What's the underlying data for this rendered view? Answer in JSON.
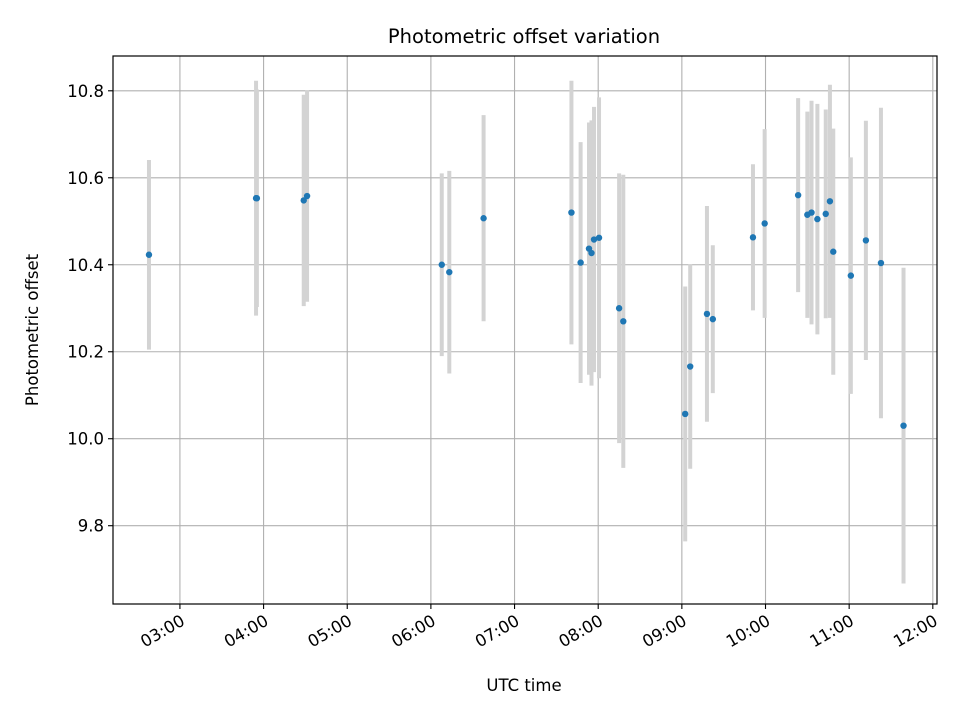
{
  "chart_data": {
    "type": "scatter",
    "title": "Photometric offset variation",
    "xlabel": "UTC time",
    "ylabel": "Photometric offset",
    "x_unit": "hours UTC",
    "xlim": [
      2.2,
      12.05
    ],
    "ylim": [
      9.62,
      10.88
    ],
    "xticks": [
      {
        "value": 3,
        "label": "03:00"
      },
      {
        "value": 4,
        "label": "04:00"
      },
      {
        "value": 5,
        "label": "05:00"
      },
      {
        "value": 6,
        "label": "06:00"
      },
      {
        "value": 7,
        "label": "07:00"
      },
      {
        "value": 8,
        "label": "08:00"
      },
      {
        "value": 9,
        "label": "09:00"
      },
      {
        "value": 10,
        "label": "10:00"
      },
      {
        "value": 11,
        "label": "11:00"
      },
      {
        "value": 12,
        "label": "12:00"
      }
    ],
    "yticks": [
      {
        "value": 9.8,
        "label": "9.8"
      },
      {
        "value": 10.0,
        "label": "10.0"
      },
      {
        "value": 10.2,
        "label": "10.2"
      },
      {
        "value": 10.4,
        "label": "10.4"
      },
      {
        "value": 10.6,
        "label": "10.6"
      },
      {
        "value": 10.8,
        "label": "10.8"
      }
    ],
    "grid": true,
    "point_color": "#1f77b4",
    "errorbar_color": "#d3d3d3",
    "points": [
      {
        "x": 2.63,
        "y": 10.423,
        "err": 0.218
      },
      {
        "x": 3.91,
        "y": 10.553,
        "err": 0.27
      },
      {
        "x": 3.92,
        "y": 10.553,
        "err": 0.25
      },
      {
        "x": 4.48,
        "y": 10.548,
        "err": 0.243
      },
      {
        "x": 4.52,
        "y": 10.558,
        "err": 0.243
      },
      {
        "x": 6.13,
        "y": 10.4,
        "err": 0.21
      },
      {
        "x": 6.22,
        "y": 10.383,
        "err": 0.233
      },
      {
        "x": 6.63,
        "y": 10.507,
        "err": 0.237
      },
      {
        "x": 7.68,
        "y": 10.52,
        "err": 0.303
      },
      {
        "x": 7.79,
        "y": 10.405,
        "err": 0.277
      },
      {
        "x": 7.89,
        "y": 10.437,
        "err": 0.29
      },
      {
        "x": 7.92,
        "y": 10.427,
        "err": 0.305
      },
      {
        "x": 7.95,
        "y": 10.458,
        "err": 0.305
      },
      {
        "x": 8.01,
        "y": 10.462,
        "err": 0.323
      },
      {
        "x": 8.25,
        "y": 10.3,
        "err": 0.31
      },
      {
        "x": 8.3,
        "y": 10.27,
        "err": 0.337
      },
      {
        "x": 9.04,
        "y": 10.057,
        "err": 0.293
      },
      {
        "x": 9.1,
        "y": 10.166,
        "err": 0.235
      },
      {
        "x": 9.3,
        "y": 10.287,
        "err": 0.248
      },
      {
        "x": 9.37,
        "y": 10.275,
        "err": 0.17
      },
      {
        "x": 9.85,
        "y": 10.463,
        "err": 0.168
      },
      {
        "x": 9.99,
        "y": 10.495,
        "err": 0.217
      },
      {
        "x": 10.39,
        "y": 10.56,
        "err": 0.223
      },
      {
        "x": 10.5,
        "y": 10.515,
        "err": 0.237
      },
      {
        "x": 10.55,
        "y": 10.52,
        "err": 0.257
      },
      {
        "x": 10.62,
        "y": 10.505,
        "err": 0.265
      },
      {
        "x": 10.72,
        "y": 10.517,
        "err": 0.24
      },
      {
        "x": 10.77,
        "y": 10.546,
        "err": 0.268
      },
      {
        "x": 10.81,
        "y": 10.43,
        "err": 0.283
      },
      {
        "x": 11.02,
        "y": 10.375,
        "err": 0.272
      },
      {
        "x": 11.2,
        "y": 10.456,
        "err": 0.275
      },
      {
        "x": 11.38,
        "y": 10.404,
        "err": 0.357
      },
      {
        "x": 11.65,
        "y": 10.03,
        "err": 0.363
      }
    ]
  }
}
